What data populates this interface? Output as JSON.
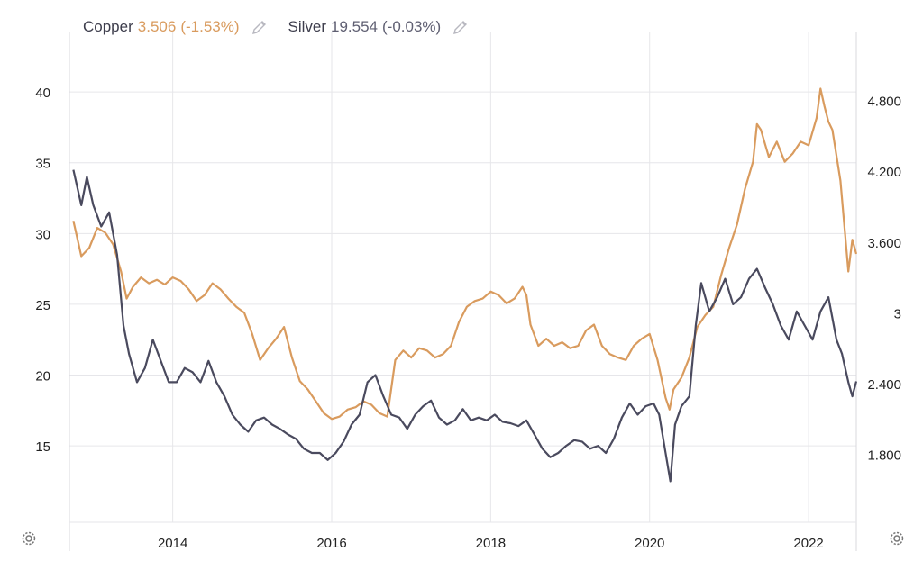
{
  "legend": {
    "copper": {
      "name": "Copper",
      "value": "3.506",
      "change": "(-1.53%)",
      "edit_icon": "pencil-icon"
    },
    "silver": {
      "name": "Silver",
      "value": "19.554",
      "change": "(-0.03%)",
      "edit_icon": "pencil-icon"
    }
  },
  "settings_icons": [
    "gear-icon",
    "gear-icon"
  ],
  "colors": {
    "copper": "#d99b5e",
    "silver": "#4a4a5e",
    "grid": "#e6e6ea",
    "text": "#222222"
  },
  "chart_data": {
    "type": "line",
    "title": "",
    "x_tick_labels": [
      "2014",
      "2016",
      "2018",
      "2020",
      "2022"
    ],
    "x_tick_values": [
      2014,
      2016,
      2018,
      2020,
      2022
    ],
    "xlim": [
      2012.7,
      2022.6
    ],
    "left_axis": {
      "ticks": [
        "15",
        "20",
        "25",
        "30",
        "35",
        "40"
      ],
      "tick_values": [
        15,
        20,
        25,
        30,
        35,
        40
      ],
      "ylim": [
        9.6,
        43
      ]
    },
    "right_axis": {
      "ticks": [
        "1.800",
        "2.400",
        "3",
        "3.600",
        "4.200",
        "4.800"
      ],
      "tick_values": [
        1.8,
        2.4,
        3.0,
        3.6,
        4.2,
        4.8
      ],
      "ylim": [
        1.224,
        5.232
      ]
    },
    "grid": true,
    "series": [
      {
        "name": "Copper",
        "axis": "right",
        "x": [
          2012.75,
          2012.85,
          2012.95,
          2013.05,
          2013.15,
          2013.25,
          2013.35,
          2013.42,
          2013.5,
          2013.6,
          2013.7,
          2013.8,
          2013.9,
          2014.0,
          2014.1,
          2014.2,
          2014.3,
          2014.4,
          2014.5,
          2014.6,
          2014.7,
          2014.8,
          2014.9,
          2015.0,
          2015.1,
          2015.2,
          2015.3,
          2015.4,
          2015.5,
          2015.6,
          2015.7,
          2015.8,
          2015.9,
          2016.0,
          2016.1,
          2016.2,
          2016.3,
          2016.4,
          2016.5,
          2016.6,
          2016.7,
          2016.8,
          2016.9,
          2017.0,
          2017.1,
          2017.2,
          2017.3,
          2017.4,
          2017.5,
          2017.6,
          2017.7,
          2017.8,
          2017.9,
          2018.0,
          2018.1,
          2018.2,
          2018.3,
          2018.4,
          2018.45,
          2018.5,
          2018.6,
          2018.7,
          2018.8,
          2018.9,
          2019.0,
          2019.1,
          2019.2,
          2019.3,
          2019.4,
          2019.5,
          2019.6,
          2019.7,
          2019.8,
          2019.9,
          2020.0,
          2020.1,
          2020.2,
          2020.25,
          2020.3,
          2020.4,
          2020.5,
          2020.6,
          2020.7,
          2020.8,
          2020.9,
          2021.0,
          2021.1,
          2021.2,
          2021.3,
          2021.35,
          2021.4,
          2021.5,
          2021.6,
          2021.7,
          2021.8,
          2021.9,
          2022.0,
          2022.1,
          2022.15,
          2022.2,
          2022.25,
          2022.3,
          2022.4,
          2022.5,
          2022.55,
          2022.6
        ],
        "values": [
          3.78,
          3.48,
          3.55,
          3.72,
          3.68,
          3.58,
          3.35,
          3.12,
          3.22,
          3.3,
          3.25,
          3.28,
          3.24,
          3.3,
          3.27,
          3.2,
          3.1,
          3.15,
          3.25,
          3.2,
          3.12,
          3.05,
          3.0,
          2.82,
          2.6,
          2.7,
          2.78,
          2.88,
          2.62,
          2.42,
          2.35,
          2.25,
          2.15,
          2.1,
          2.12,
          2.18,
          2.2,
          2.25,
          2.22,
          2.15,
          2.12,
          2.6,
          2.68,
          2.62,
          2.7,
          2.68,
          2.62,
          2.65,
          2.72,
          2.92,
          3.05,
          3.1,
          3.12,
          3.18,
          3.15,
          3.08,
          3.12,
          3.22,
          3.15,
          2.9,
          2.72,
          2.78,
          2.72,
          2.75,
          2.7,
          2.72,
          2.85,
          2.9,
          2.72,
          2.65,
          2.62,
          2.6,
          2.72,
          2.78,
          2.82,
          2.6,
          2.28,
          2.18,
          2.35,
          2.45,
          2.62,
          2.88,
          2.98,
          3.05,
          3.32,
          3.55,
          3.75,
          4.05,
          4.28,
          4.6,
          4.55,
          4.32,
          4.45,
          4.28,
          4.35,
          4.45,
          4.42,
          4.65,
          4.9,
          4.75,
          4.62,
          4.55,
          4.12,
          3.35,
          3.62,
          3.5
        ],
        "latest": 3.506
      },
      {
        "name": "Silver",
        "axis": "left",
        "x": [
          2012.75,
          2012.85,
          2012.92,
          2013.0,
          2013.1,
          2013.2,
          2013.3,
          2013.38,
          2013.45,
          2013.55,
          2013.65,
          2013.75,
          2013.85,
          2013.95,
          2014.05,
          2014.15,
          2014.25,
          2014.35,
          2014.45,
          2014.55,
          2014.65,
          2014.75,
          2014.85,
          2014.95,
          2015.05,
          2015.15,
          2015.25,
          2015.35,
          2015.45,
          2015.55,
          2015.65,
          2015.75,
          2015.85,
          2015.95,
          2016.05,
          2016.15,
          2016.25,
          2016.35,
          2016.45,
          2016.55,
          2016.65,
          2016.75,
          2016.85,
          2016.95,
          2017.05,
          2017.15,
          2017.25,
          2017.35,
          2017.45,
          2017.55,
          2017.65,
          2017.75,
          2017.85,
          2017.95,
          2018.05,
          2018.15,
          2018.25,
          2018.35,
          2018.45,
          2018.55,
          2018.65,
          2018.75,
          2018.85,
          2018.95,
          2019.05,
          2019.15,
          2019.25,
          2019.35,
          2019.45,
          2019.55,
          2019.65,
          2019.75,
          2019.85,
          2019.95,
          2020.05,
          2020.12,
          2020.2,
          2020.26,
          2020.32,
          2020.4,
          2020.5,
          2020.58,
          2020.65,
          2020.75,
          2020.85,
          2020.95,
          2021.05,
          2021.15,
          2021.25,
          2021.35,
          2021.45,
          2021.55,
          2021.65,
          2021.75,
          2021.85,
          2021.95,
          2022.05,
          2022.15,
          2022.25,
          2022.35,
          2022.42,
          2022.5,
          2022.55,
          2022.6
        ],
        "values": [
          34.5,
          32.0,
          34.0,
          32.0,
          30.5,
          31.5,
          28.5,
          23.5,
          21.5,
          19.5,
          20.5,
          22.5,
          21.0,
          19.5,
          19.5,
          20.5,
          20.2,
          19.5,
          21.0,
          19.5,
          18.5,
          17.2,
          16.5,
          16.0,
          16.8,
          17.0,
          16.5,
          16.2,
          15.8,
          15.5,
          14.8,
          14.5,
          14.5,
          14.0,
          14.5,
          15.3,
          16.5,
          17.2,
          19.5,
          20.0,
          18.5,
          17.2,
          17.0,
          16.2,
          17.2,
          17.8,
          18.2,
          17.0,
          16.5,
          16.8,
          17.6,
          16.8,
          17.0,
          16.8,
          17.2,
          16.7,
          16.6,
          16.4,
          16.8,
          15.8,
          14.8,
          14.2,
          14.5,
          15.0,
          15.4,
          15.3,
          14.8,
          15.0,
          14.5,
          15.5,
          17.0,
          18.0,
          17.2,
          17.8,
          18.0,
          17.2,
          14.5,
          12.5,
          16.5,
          17.8,
          18.5,
          23.5,
          26.5,
          24.5,
          25.5,
          26.8,
          25.0,
          25.5,
          26.8,
          27.5,
          26.2,
          25.0,
          23.5,
          22.5,
          24.5,
          23.5,
          22.5,
          24.5,
          25.5,
          22.5,
          21.5,
          19.5,
          18.5,
          19.554
        ],
        "latest": 19.554
      }
    ]
  }
}
